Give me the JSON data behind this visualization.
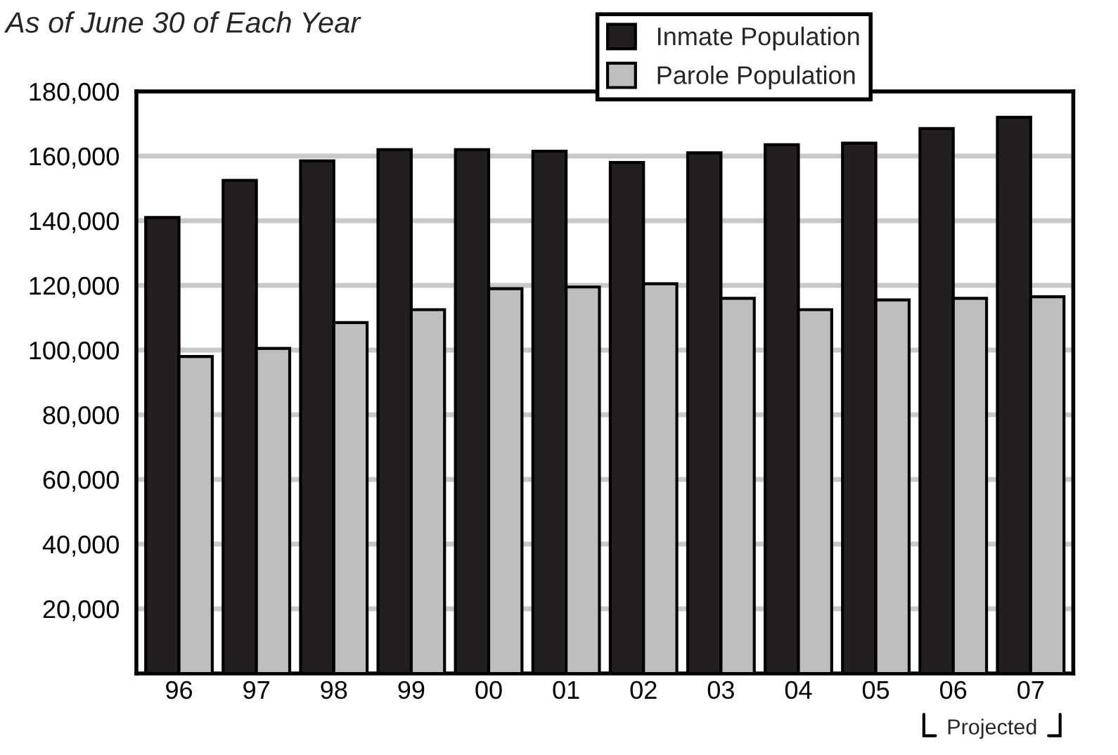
{
  "chart_data": {
    "type": "bar",
    "subtitle": "As of June 30 of Each Year",
    "categories": [
      "96",
      "97",
      "98",
      "99",
      "00",
      "01",
      "02",
      "03",
      "04",
      "05",
      "06",
      "07"
    ],
    "series": [
      {
        "name": "Inmate Population",
        "color": "#231f20",
        "values": [
          141000,
          152500,
          158500,
          162000,
          162000,
          161500,
          158000,
          161000,
          163500,
          164000,
          168500,
          172000
        ]
      },
      {
        "name": "Parole Population",
        "color": "#bcbec0",
        "values": [
          98000,
          100500,
          108500,
          112500,
          119000,
          119500,
          120500,
          116000,
          112500,
          115500,
          116000,
          116500
        ]
      }
    ],
    "ylim": [
      0,
      180000
    ],
    "yticks": [
      {
        "value": 20000,
        "label": "20,000"
      },
      {
        "value": 40000,
        "label": "40,000"
      },
      {
        "value": 60000,
        "label": "60,000"
      },
      {
        "value": 80000,
        "label": "80,000"
      },
      {
        "value": 100000,
        "label": "100,000"
      },
      {
        "value": 120000,
        "label": "120,000"
      },
      {
        "value": 140000,
        "label": "140,000"
      },
      {
        "value": 160000,
        "label": "160,000"
      },
      {
        "value": 180000,
        "label": "180,000"
      }
    ],
    "grid": "y",
    "legend": "top right",
    "annotations": [
      "Projected"
    ]
  }
}
